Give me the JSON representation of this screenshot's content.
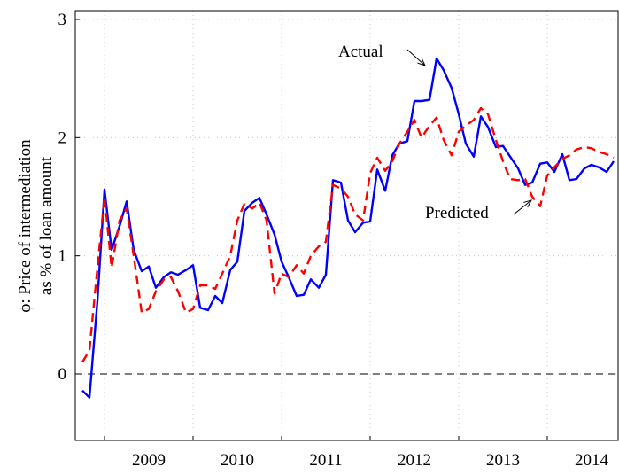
{
  "chart_data": {
    "type": "line",
    "ylabel": [
      "ϕ: Price of intermediation",
      "as % of loan amount"
    ],
    "x": [
      2008.75,
      2008.83,
      2008.92,
      2009.0,
      2009.08,
      2009.17,
      2009.25,
      2009.33,
      2009.42,
      2009.5,
      2009.58,
      2009.67,
      2009.75,
      2009.83,
      2009.92,
      2010.0,
      2010.08,
      2010.17,
      2010.25,
      2010.33,
      2010.42,
      2010.5,
      2010.58,
      2010.67,
      2010.75,
      2010.83,
      2010.92,
      2011.0,
      2011.08,
      2011.17,
      2011.25,
      2011.33,
      2011.42,
      2011.5,
      2011.58,
      2011.67,
      2011.75,
      2011.83,
      2011.92,
      2012.0,
      2012.08,
      2012.17,
      2012.25,
      2012.33,
      2012.42,
      2012.5,
      2012.58,
      2012.67,
      2012.75,
      2012.83,
      2012.92,
      2013.0,
      2013.08,
      2013.17,
      2013.25,
      2013.33,
      2013.42,
      2013.5,
      2013.58,
      2013.67,
      2013.75,
      2013.83,
      2013.92,
      2014.0,
      2014.08,
      2014.17,
      2014.25,
      2014.33,
      2014.42,
      2014.5,
      2014.58,
      2014.67,
      2014.75
    ],
    "series": [
      {
        "name": "Actual",
        "color": "#0000ff",
        "dash": false,
        "values": [
          -0.14,
          -0.2,
          0.62,
          1.56,
          1.05,
          1.25,
          1.46,
          1.05,
          0.87,
          0.91,
          0.73,
          0.82,
          0.86,
          0.84,
          0.88,
          0.92,
          0.56,
          0.54,
          0.66,
          0.6,
          0.88,
          0.95,
          1.38,
          1.45,
          1.49,
          1.35,
          1.18,
          0.95,
          0.82,
          0.66,
          0.67,
          0.8,
          0.73,
          0.84,
          1.64,
          1.62,
          1.3,
          1.2,
          1.28,
          1.29,
          1.73,
          1.55,
          1.85,
          1.95,
          1.97,
          2.31,
          2.31,
          2.32,
          2.67,
          2.57,
          2.42,
          2.2,
          1.95,
          1.84,
          2.18,
          2.09,
          1.92,
          1.93,
          1.84,
          1.74,
          1.6,
          1.62,
          1.78,
          1.79,
          1.71,
          1.86,
          1.64,
          1.65,
          1.74,
          1.77,
          1.75,
          1.71,
          1.8
        ]
      },
      {
        "name": "Predicted",
        "color": "#ff0000",
        "dash": true,
        "values": [
          0.1,
          0.2,
          0.9,
          1.5,
          0.9,
          1.3,
          1.4,
          1.0,
          0.52,
          0.55,
          0.7,
          0.8,
          0.82,
          0.7,
          0.52,
          0.55,
          0.75,
          0.75,
          0.72,
          0.85,
          1.0,
          1.3,
          1.44,
          1.4,
          1.45,
          1.3,
          0.68,
          0.85,
          0.82,
          0.92,
          0.85,
          1.0,
          1.08,
          1.12,
          1.6,
          1.57,
          1.5,
          1.35,
          1.3,
          1.7,
          1.83,
          1.72,
          1.8,
          1.95,
          2.05,
          2.15,
          2.0,
          2.1,
          2.17,
          1.98,
          1.85,
          2.05,
          2.1,
          2.15,
          2.25,
          2.2,
          1.98,
          1.8,
          1.65,
          1.64,
          1.65,
          1.5,
          1.42,
          1.68,
          1.75,
          1.82,
          1.85,
          1.9,
          1.92,
          1.91,
          1.88,
          1.86,
          1.83
        ]
      }
    ],
    "xlim": [
      2008.67,
      2014.8
    ],
    "ylim": [
      -0.5625,
      3.075
    ],
    "xticks": [
      2009,
      2010,
      2011,
      2012,
      2013,
      2014
    ],
    "yticks": [
      0,
      1,
      2,
      3
    ],
    "hline": 0,
    "grid": true
  }
}
